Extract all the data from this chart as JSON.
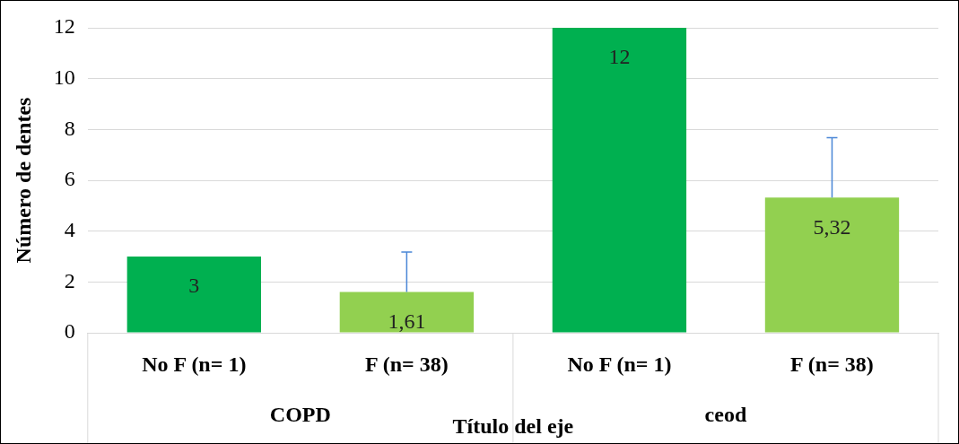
{
  "chart_data": {
    "type": "bar",
    "xlabel": "Título del eje",
    "ylabel": "Número de dentes",
    "categories": [
      "No F (n= 1)",
      "F (n= 38)",
      "No F (n= 1)",
      "F (n= 38)"
    ],
    "values": [
      3,
      1.61,
      12,
      5.32
    ],
    "colors": [
      "#00b050",
      "#92d050",
      "#00b050",
      "#92d050"
    ],
    "value_labels": [
      "3",
      "1,61",
      "12",
      "5,32"
    ],
    "errors": [
      null,
      [
        1.61,
        3.18
      ],
      null,
      [
        5.32,
        7.68
      ]
    ],
    "annotations": [
      "COPD",
      "ceod"
    ],
    "ylim": [
      0,
      12
    ],
    "yticks": [
      0,
      2,
      4,
      6,
      8,
      10,
      12
    ],
    "grid": "y",
    "legend": false
  }
}
